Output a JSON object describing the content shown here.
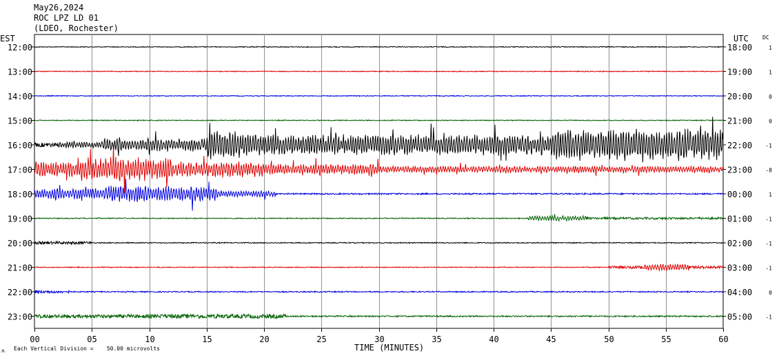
{
  "header": {
    "date": "May26,2024",
    "station": "ROC LPZ LD 01",
    "network": "(LDEO, Rochester)"
  },
  "chart_data": {
    "type": "line",
    "title": "ROC LPZ LD 01",
    "xlabel": "TIME (MINUTES)",
    "left_axis_title": "EST",
    "right_axis_title": "UTC",
    "dc_title": "DC",
    "x_ticks": [
      "00",
      "05",
      "10",
      "15",
      "20",
      "25",
      "30",
      "35",
      "40",
      "45",
      "50",
      "55",
      "60"
    ],
    "xlim": [
      0,
      60
    ],
    "grid": true,
    "trace_colors": [
      "#000000",
      "#e00000",
      "#0000e0",
      "#006000"
    ],
    "series": [
      {
        "left": "12:00",
        "right": "18:00",
        "dc": "1",
        "activity": [
          [
            0,
            60,
            0.6
          ]
        ]
      },
      {
        "left": "13:00",
        "right": "19:00",
        "dc": "1",
        "activity": [
          [
            0,
            60,
            0.6
          ]
        ]
      },
      {
        "left": "14:00",
        "right": "20:00",
        "dc": "0",
        "activity": [
          [
            0,
            60,
            0.6
          ]
        ]
      },
      {
        "left": "15:00",
        "right": "21:00",
        "dc": "0",
        "activity": [
          [
            0,
            60,
            0.6
          ]
        ]
      },
      {
        "left": "16:00",
        "right": "22:00",
        "dc": "-1",
        "activity": [
          [
            0,
            2,
            3
          ],
          [
            2,
            6,
            5
          ],
          [
            6,
            15,
            10
          ],
          [
            15,
            18,
            22
          ],
          [
            18,
            45,
            16
          ],
          [
            45,
            60,
            24
          ]
        ]
      },
      {
        "left": "17:00",
        "right": "23:00",
        "dc": "-8",
        "activity": [
          [
            0,
            4,
            12
          ],
          [
            4,
            12,
            18
          ],
          [
            12,
            20,
            12
          ],
          [
            20,
            30,
            8
          ],
          [
            30,
            60,
            5
          ]
        ]
      },
      {
        "left": "18:00",
        "right": "00:00",
        "dc": "1",
        "activity": [
          [
            0,
            6,
            8
          ],
          [
            6,
            16,
            12
          ],
          [
            16,
            21,
            5
          ],
          [
            21,
            60,
            1
          ]
        ]
      },
      {
        "left": "19:00",
        "right": "01:00",
        "dc": "-1",
        "activity": [
          [
            0,
            43,
            0.7
          ],
          [
            43,
            48,
            4
          ],
          [
            48,
            60,
            1.5
          ]
        ]
      },
      {
        "left": "20:00",
        "right": "02:00",
        "dc": "-1",
        "activity": [
          [
            0,
            5,
            2
          ],
          [
            5,
            60,
            0.7
          ]
        ]
      },
      {
        "left": "21:00",
        "right": "03:00",
        "dc": "-1",
        "activity": [
          [
            0,
            50,
            0.6
          ],
          [
            50,
            53,
            2
          ],
          [
            53,
            57,
            5
          ],
          [
            57,
            60,
            2
          ]
        ]
      },
      {
        "left": "22:00",
        "right": "04:00",
        "dc": "0",
        "activity": [
          [
            0,
            3,
            2
          ],
          [
            3,
            60,
            0.8
          ]
        ]
      },
      {
        "left": "23:00",
        "right": "05:00",
        "dc": "-1",
        "activity": [
          [
            0,
            10,
            2.5
          ],
          [
            10,
            22,
            3
          ],
          [
            22,
            60,
            1
          ]
        ]
      }
    ]
  },
  "footer": {
    "scale_note": "Each Vertical Division =    50.00 microvolts",
    "corner_mark": "ʌ"
  }
}
